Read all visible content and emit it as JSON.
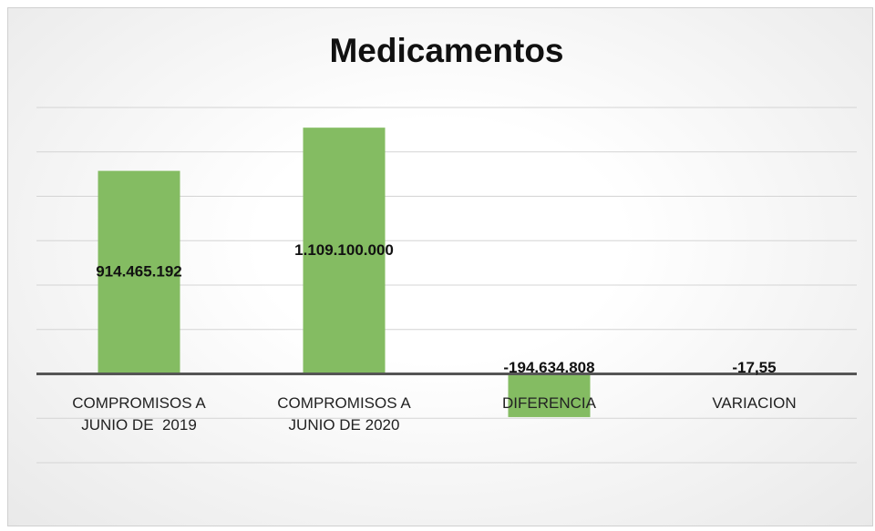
{
  "chart_data": {
    "type": "bar",
    "title": "Medicamentos",
    "categories": [
      "COMPROMISOS A JUNIO DE  2019",
      "COMPROMISOS A JUNIO DE 2020",
      "DIFERENCIA",
      "VARIACION"
    ],
    "values": [
      914465192,
      1109100000,
      -194634808,
      -17.55
    ],
    "value_labels": [
      "914.465.192",
      "1.109.100.000",
      "-194.634.808",
      "-17,55"
    ],
    "color": "#84bc62",
    "ylim": [
      -400000000,
      1200000000
    ],
    "yticks": [
      -400000000,
      -200000000,
      0,
      200000000,
      400000000,
      600000000,
      800000000,
      1000000000,
      1200000000
    ],
    "grid": true
  }
}
